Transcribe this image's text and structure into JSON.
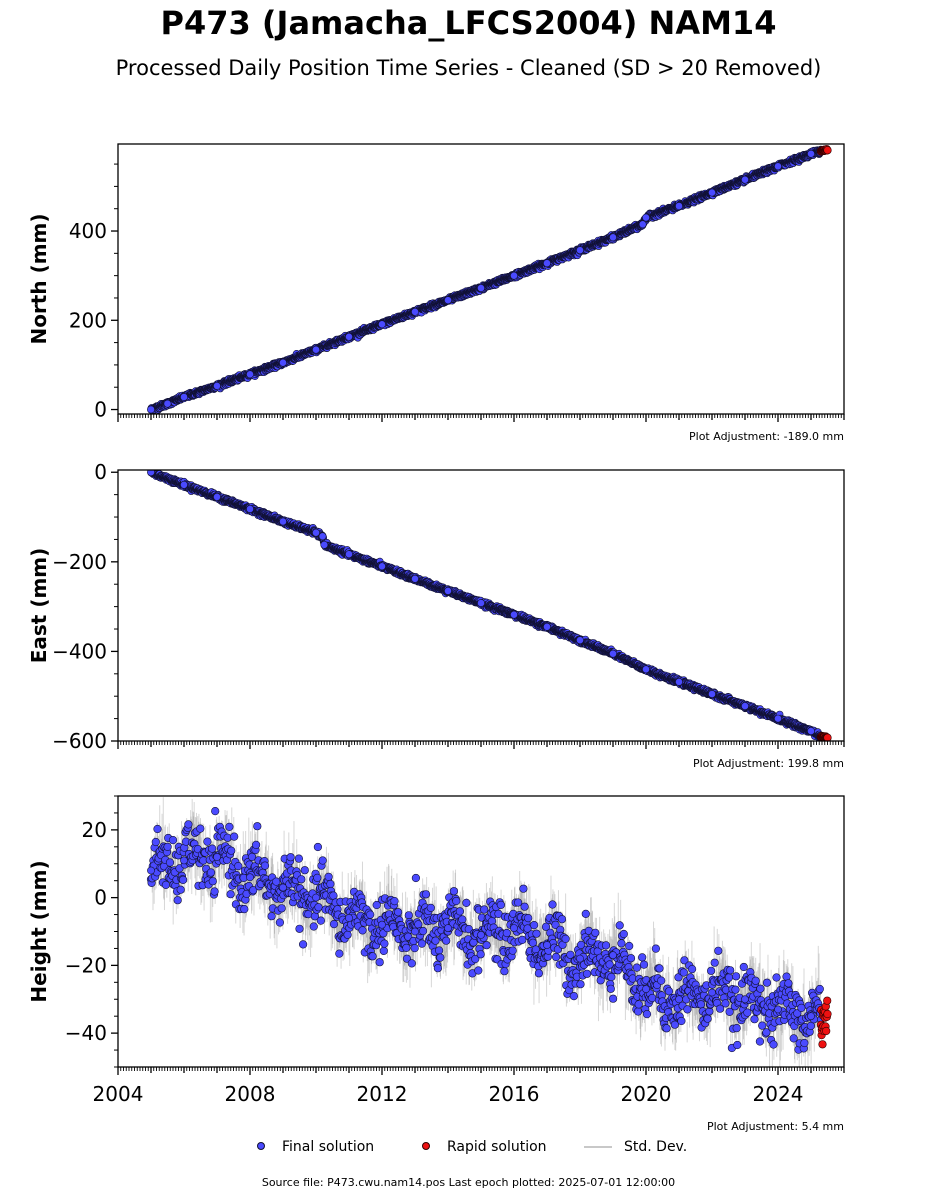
{
  "title": "P473 (Jamacha_LFCS2004) NAM14",
  "subtitle": "Processed Daily Position Time Series - Cleaned (SD > 20 Removed)",
  "footer": "Source file: P473.cwu.nam14.pos  Last epoch plotted: 2025-07-01 12:00:00",
  "legend": [
    {
      "label": "Final solution",
      "color": "#4a4aff",
      "kind": "marker"
    },
    {
      "label": "Rapid solution",
      "color": "#ee1111",
      "kind": "marker"
    },
    {
      "label": "Std. Dev.",
      "color": "#c8c8c8",
      "kind": "line"
    }
  ],
  "colors": {
    "final": "#4a4aff",
    "rapid": "#ee1111",
    "edge": "#111133",
    "errorbar": "#8c8c8c"
  },
  "chart_data": [
    {
      "type": "scatter",
      "ylabel": "North (mm)",
      "adjustment": "Plot Adjustment: -189.0 mm",
      "xlim": [
        2004,
        2026
      ],
      "ylim": [
        -10,
        595
      ],
      "yticks": [
        0,
        200,
        400
      ],
      "ytick_labels": [
        "0",
        "200",
        "400"
      ],
      "show_xtick_labels": false,
      "series": [
        {
          "name": "Final solution",
          "solution": "final",
          "x": [
            2005.0,
            2005.5,
            2006.0,
            2007.0,
            2008.0,
            2009.0,
            2010.0,
            2011.0,
            2012.0,
            2013.0,
            2014.0,
            2015.0,
            2016.0,
            2017.0,
            2018.0,
            2019.0,
            2019.9,
            2020.0,
            2021.0,
            2022.0,
            2023.0,
            2024.0,
            2025.0,
            2025.3
          ],
          "y": [
            0,
            13,
            28,
            53,
            79,
            105,
            134,
            163,
            191,
            219,
            245,
            272,
            300,
            328,
            357,
            386,
            415,
            430,
            456,
            486,
            515,
            545,
            573,
            580
          ],
          "scatter": 2.5
        },
        {
          "name": "Rapid solution",
          "solution": "rapid",
          "x": [
            2025.3,
            2025.5
          ],
          "y": [
            580,
            582
          ],
          "scatter": 1.5
        }
      ]
    },
    {
      "type": "scatter",
      "ylabel": "East (mm)",
      "adjustment": "Plot Adjustment: 199.8 mm",
      "xlim": [
        2004,
        2026
      ],
      "ylim": [
        -600,
        5
      ],
      "yticks": [
        -600,
        -400,
        -200,
        0
      ],
      "ytick_labels": [
        "−600",
        "−400",
        "−200",
        "0"
      ],
      "show_xtick_labels": false,
      "series": [
        {
          "name": "Final solution",
          "solution": "final",
          "x": [
            2005.0,
            2006.0,
            2007.0,
            2008.0,
            2009.0,
            2010.0,
            2010.2,
            2010.25,
            2011.0,
            2012.0,
            2013.0,
            2014.0,
            2015.0,
            2016.0,
            2017.0,
            2018.0,
            2019.0,
            2020.0,
            2021.0,
            2022.0,
            2023.0,
            2024.0,
            2025.0,
            2025.3
          ],
          "y": [
            0,
            -28,
            -55,
            -82,
            -110,
            -135,
            -143,
            -162,
            -183,
            -210,
            -238,
            -265,
            -292,
            -318,
            -345,
            -375,
            -405,
            -440,
            -468,
            -495,
            -522,
            -550,
            -578,
            -590
          ],
          "scatter": 2.5
        },
        {
          "name": "Rapid solution",
          "solution": "rapid",
          "x": [
            2025.3,
            2025.5
          ],
          "y": [
            -590,
            -593
          ],
          "scatter": 1.5
        }
      ]
    },
    {
      "type": "scatter",
      "ylabel": "Height (mm)",
      "adjustment": "Plot Adjustment: 5.4 mm",
      "xlim": [
        2004,
        2026
      ],
      "ylim": [
        -50,
        30
      ],
      "yticks": [
        -40,
        -20,
        0,
        20
      ],
      "ytick_labels": [
        "−40",
        "−20",
        "0",
        "20"
      ],
      "show_xtick_labels": true,
      "xticks": [
        2004,
        2008,
        2012,
        2016,
        2020,
        2024
      ],
      "xtick_labels": [
        "2004",
        "2008",
        "2012",
        "2016",
        "2020",
        "2024"
      ],
      "series": [
        {
          "name": "Final solution",
          "solution": "final",
          "x": [
            2005.0,
            2006.0,
            2007.0,
            2008.0,
            2009.0,
            2010.0,
            2011.0,
            2012.0,
            2013.0,
            2014.0,
            2015.0,
            2016.0,
            2017.0,
            2018.0,
            2019.0,
            2020.0,
            2021.0,
            2022.0,
            2023.0,
            2024.0,
            2025.0,
            2025.3
          ],
          "y": [
            8,
            11,
            12,
            6,
            3,
            0,
            -6,
            -8,
            -10,
            -9,
            -11,
            -9,
            -14,
            -18,
            -17,
            -27,
            -30,
            -28,
            -30,
            -33,
            -35,
            -36
          ],
          "scatter": 12
        },
        {
          "name": "Rapid solution",
          "solution": "rapid",
          "x": [
            2025.3,
            2025.5
          ],
          "y": [
            -36,
            -35
          ],
          "scatter": 7
        }
      ]
    }
  ]
}
